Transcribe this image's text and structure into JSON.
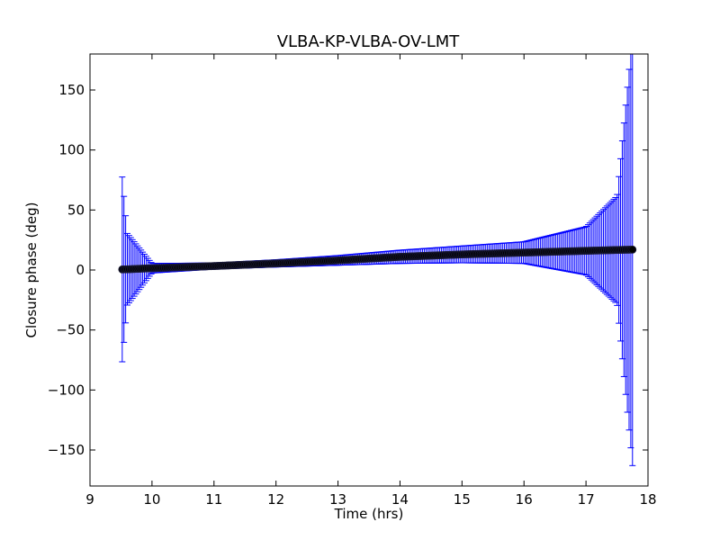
{
  "chart_data": {
    "type": "scatter",
    "title": "VLBA-KP-VLBA-OV-LMT",
    "xlabel": "Time (hrs)",
    "ylabel": "Closure phase (deg)",
    "xlim": [
      9,
      18
    ],
    "ylim": [
      -180,
      180
    ],
    "xticks": [
      9,
      10,
      11,
      12,
      13,
      14,
      15,
      16,
      17,
      18
    ],
    "yticks": [
      -150,
      -100,
      -50,
      0,
      50,
      100,
      150
    ],
    "ytick_labels": [
      "−150",
      "−100",
      "−50",
      "0",
      "50",
      "100",
      "150"
    ],
    "grid": false,
    "series": [
      {
        "marker": "circle",
        "marker_color": "#000000",
        "errorbar_color": "#0000ff",
        "x_range": [
          9.52,
          17.75
        ],
        "y_start": 0.5,
        "y_end": 17,
        "x": [
          9.52,
          9.6,
          10.0,
          11.0,
          12.0,
          13.0,
          14.0,
          15.0,
          16.0,
          17.0,
          17.5,
          17.75
        ],
        "y": [
          0.5,
          0.6,
          1.5,
          3.3,
          5.5,
          8.0,
          11.0,
          13.0,
          14.5,
          16.0,
          16.7,
          17.0
        ],
        "yerr": [
          77,
          30,
          4,
          2.5,
          3,
          4,
          5.5,
          7,
          9,
          20,
          45,
          180
        ]
      }
    ]
  }
}
